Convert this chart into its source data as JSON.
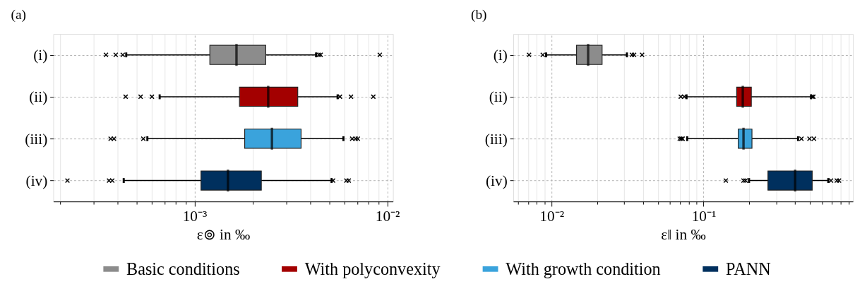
{
  "chart_data": [
    {
      "type": "box",
      "title": "(a)",
      "xlabel": "ε⊚ in ‰",
      "orientation": "horizontal",
      "log": "x",
      "grid": true,
      "legend": "bottom",
      "categories": [
        "(i)",
        "(ii)",
        "(iii)",
        "(iv)"
      ],
      "xlim": [
        0.000185,
        0.0107
      ],
      "xticks": [
        {
          "value": 0.0002,
          "label": null
        },
        {
          "value": 0.0003,
          "label": null
        },
        {
          "value": 0.0004,
          "label": null
        },
        {
          "value": 0.0005,
          "label": null
        },
        {
          "value": 0.0006,
          "label": null
        },
        {
          "value": 0.0007,
          "label": null
        },
        {
          "value": 0.0008,
          "label": null
        },
        {
          "value": 0.0009,
          "label": null
        },
        {
          "value": 0.001,
          "label": "10⁻³"
        },
        {
          "value": 0.002,
          "label": null
        },
        {
          "value": 0.003,
          "label": null
        },
        {
          "value": 0.004,
          "label": null
        },
        {
          "value": 0.005,
          "label": null
        },
        {
          "value": 0.006,
          "label": null
        },
        {
          "value": 0.007,
          "label": null
        },
        {
          "value": 0.008,
          "label": null
        },
        {
          "value": 0.009,
          "label": null
        },
        {
          "value": 0.01,
          "label": "10⁻²"
        }
      ],
      "series": [
        {
          "name": "Basic conditions",
          "color": "#8c8c8c",
          "boxes": [
            {
              "low": 0.000442,
              "q1": 0.0012,
              "median": 0.00165,
              "q3": 0.00234,
              "high": 0.00427,
              "outliers": [
                0.000347,
                0.00039,
                0.000424,
                0.00441,
                0.00451,
                0.00914
              ]
            },
            null,
            null,
            null
          ]
        },
        {
          "name": "With polyconvexity",
          "color": "#a30000",
          "boxes": [
            null,
            {
              "low": 0.000659,
              "q1": 0.00171,
              "median": 0.00241,
              "q3": 0.00343,
              "high": 0.00552,
              "outliers": [
                0.000439,
                0.000525,
                0.000601,
                0.00568,
                0.00648,
                0.00846
              ]
            },
            null,
            null
          ]
        },
        {
          "name": "With growth condition",
          "color": "#3aa3dc",
          "boxes": [
            null,
            null,
            {
              "low": 0.000569,
              "q1": 0.00182,
              "median": 0.00252,
              "q3": 0.00357,
              "high": 0.00592,
              "outliers": [
                0.000367,
                0.000382,
                0.000542,
                0.00657,
                0.00685,
                0.00703
              ]
            },
            null
          ]
        },
        {
          "name": "PANN",
          "color": "#00305e",
          "boxes": [
            null,
            null,
            null,
            {
              "low": 0.000429,
              "q1": 0.00108,
              "median": 0.00149,
              "q3": 0.00222,
              "high": 0.00514,
              "outliers": [
                0.000219,
                0.00036,
                0.000374,
                0.00523,
                0.00613,
                0.00631
              ]
            }
          ]
        }
      ]
    },
    {
      "type": "box",
      "title": "(b)",
      "xlabel": "ε‖ in ‰",
      "orientation": "horizontal",
      "log": "x",
      "grid": true,
      "categories": [
        "(i)",
        "(ii)",
        "(iii)",
        "(iv)"
      ],
      "xlim": [
        0.0056,
        0.96
      ],
      "xticks": [
        {
          "value": 0.006,
          "label": null
        },
        {
          "value": 0.007,
          "label": null
        },
        {
          "value": 0.008,
          "label": null
        },
        {
          "value": 0.009,
          "label": null
        },
        {
          "value": 0.01,
          "label": "10⁻²"
        },
        {
          "value": 0.02,
          "label": null
        },
        {
          "value": 0.03,
          "label": null
        },
        {
          "value": 0.04,
          "label": null
        },
        {
          "value": 0.05,
          "label": null
        },
        {
          "value": 0.06,
          "label": null
        },
        {
          "value": 0.07,
          "label": null
        },
        {
          "value": 0.08,
          "label": null
        },
        {
          "value": 0.09,
          "label": null
        },
        {
          "value": 0.1,
          "label": "10⁻¹"
        },
        {
          "value": 0.2,
          "label": null
        },
        {
          "value": 0.3,
          "label": null
        },
        {
          "value": 0.4,
          "label": null
        },
        {
          "value": 0.5,
          "label": null
        },
        {
          "value": 0.6,
          "label": null
        },
        {
          "value": 0.7,
          "label": null
        },
        {
          "value": 0.8,
          "label": null
        },
        {
          "value": 0.9,
          "label": null
        }
      ],
      "colors": [
        "#8c8c8c",
        "#a30000",
        "#3aa3dc",
        "#00305e"
      ],
      "boxes": [
        {
          "low": 0.00921,
          "q1": 0.0146,
          "median": 0.0174,
          "q3": 0.0215,
          "high": 0.0313,
          "outliers": [
            0.00711,
            0.00875,
            0.0338,
            0.0349,
            0.0394
          ]
        },
        {
          "low": 0.0772,
          "q1": 0.165,
          "median": 0.181,
          "q3": 0.206,
          "high": 0.509,
          "outliers": [
            0.0708,
            0.0746,
            0.519,
            0.527
          ]
        },
        {
          "low": 0.078,
          "q1": 0.169,
          "median": 0.183,
          "q3": 0.208,
          "high": 0.418,
          "outliers": [
            0.0697,
            0.0713,
            0.0728,
            0.44,
            0.497,
            0.532
          ]
        },
        {
          "low": 0.199,
          "q1": 0.265,
          "median": 0.4,
          "q3": 0.518,
          "high": 0.661,
          "outliers": [
            0.14,
            0.183,
            0.189,
            0.689,
            0.752,
            0.778
          ]
        }
      ]
    }
  ]
}
